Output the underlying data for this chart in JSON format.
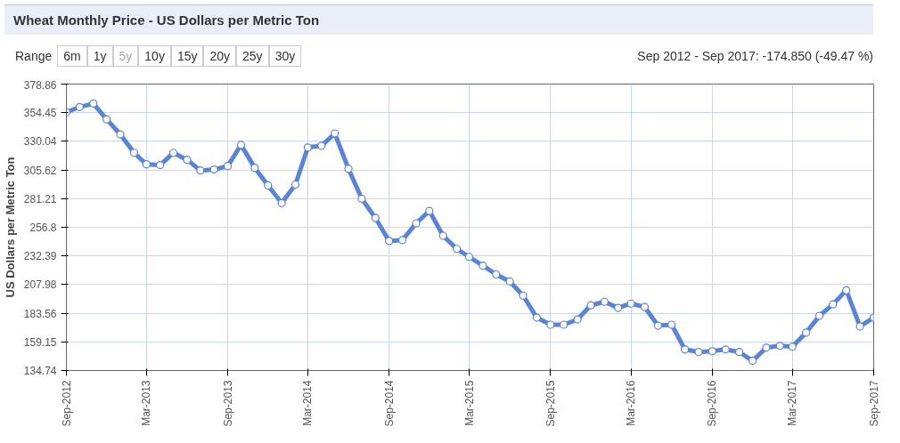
{
  "chart_data": {
    "type": "line",
    "title": "Wheat Monthly Price - US Dollars per Metric Ton",
    "ylabel": "US Dollars per Metric Ton",
    "annotations": [
      "Range",
      "6m",
      "1y",
      "5y",
      "10y",
      "15y",
      "20y",
      "25y",
      "30y",
      "Sep 2012 - Sep 2017: -174.850 (-49.47 %)"
    ],
    "x": [
      "2012-09",
      "2012-10",
      "2012-11",
      "2012-12",
      "2013-01",
      "2013-02",
      "2013-03",
      "2013-04",
      "2013-05",
      "2013-06",
      "2013-07",
      "2013-08",
      "2013-09",
      "2013-10",
      "2013-11",
      "2013-12",
      "2014-01",
      "2014-02",
      "2014-03",
      "2014-04",
      "2014-05",
      "2014-06",
      "2014-07",
      "2014-08",
      "2014-09",
      "2014-10",
      "2014-11",
      "2014-12",
      "2015-01",
      "2015-02",
      "2015-03",
      "2015-04",
      "2015-05",
      "2015-06",
      "2015-07",
      "2015-08",
      "2015-09",
      "2015-10",
      "2015-11",
      "2015-12",
      "2016-01",
      "2016-02",
      "2016-03",
      "2016-04",
      "2016-05",
      "2016-06",
      "2016-07",
      "2016-08",
      "2016-09",
      "2016-10",
      "2016-11",
      "2016-12",
      "2017-01",
      "2017-02",
      "2017-03",
      "2017-04",
      "2017-05",
      "2017-06",
      "2017-07",
      "2017-08",
      "2017-09"
    ],
    "series": [
      {
        "color": "#5b84d4",
        "values": [
          354.8,
          359.3,
          362.3,
          348.8,
          336.0,
          320.3,
          310.5,
          309.8,
          320.3,
          314.3,
          305.2,
          306.0,
          309.0,
          327.0,
          307.5,
          292.5,
          277.4,
          293.2,
          324.8,
          326.3,
          336.8,
          306.7,
          281.2,
          264.7,
          245.1,
          245.9,
          260.2,
          270.7,
          249.6,
          238.4,
          231.6,
          224.1,
          216.6,
          210.6,
          198.6,
          179.8,
          173.8,
          173.8,
          178.3,
          190.3,
          193.3,
          188.1,
          191.8,
          188.8,
          173.0,
          173.8,
          152.7,
          150.5,
          151.2,
          152.7,
          150.5,
          143.0,
          154.2,
          155.7,
          155.0,
          167.0,
          181.3,
          191.1,
          203.1,
          172.3,
          179.8
        ]
      }
    ],
    "xlim": [
      "2012-09",
      "2017-09"
    ],
    "xticks": [
      {
        "value": "2012-09",
        "label": "Sep-2012"
      },
      {
        "value": "2013-03",
        "label": "Mar-2013"
      },
      {
        "value": "2013-09",
        "label": "Sep-2013"
      },
      {
        "value": "2014-03",
        "label": "Mar-2014"
      },
      {
        "value": "2014-09",
        "label": "Sep-2014"
      },
      {
        "value": "2015-03",
        "label": "Mar-2015"
      },
      {
        "value": "2015-09",
        "label": "Sep-2015"
      },
      {
        "value": "2016-03",
        "label": "Mar-2016"
      },
      {
        "value": "2016-09",
        "label": "Sep-2016"
      },
      {
        "value": "2017-03",
        "label": "Mar-2017"
      },
      {
        "value": "2017-09",
        "label": "Sep-2017"
      }
    ],
    "ylim": [
      134.74,
      378.86
    ],
    "yticks": [
      134.74,
      159.15,
      183.56,
      207.98,
      232.39,
      256.8,
      281.21,
      305.62,
      330.04,
      354.45,
      378.86
    ],
    "grid": true,
    "marker": "circle",
    "line_style": "solid"
  }
}
